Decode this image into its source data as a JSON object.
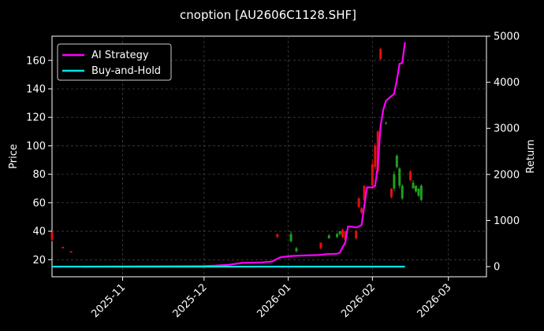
{
  "chart_data": {
    "type": "line",
    "title": "cnoption [AU2606C1128.SHF]",
    "xlabel": "",
    "ylabel": "Price",
    "y2label": "Return",
    "xlim": [
      "2025-10-06",
      "2026-03-15"
    ],
    "ylim": [
      8,
      177
    ],
    "y2lim": [
      -220,
      5000
    ],
    "x_ticks": [
      {
        "date": "2025-11-01",
        "label": "2025-11"
      },
      {
        "date": "2025-12-01",
        "label": "2025-12"
      },
      {
        "date": "2026-01-01",
        "label": "2026-01"
      },
      {
        "date": "2026-02-01",
        "label": "2026-02"
      },
      {
        "date": "2026-03-01",
        "label": "2026-03"
      }
    ],
    "y_ticks": [
      20,
      40,
      60,
      80,
      100,
      120,
      140,
      160
    ],
    "y2_ticks": [
      0,
      1000,
      2000,
      3000,
      4000,
      5000
    ],
    "grid": true,
    "legend": {
      "position": "top-left"
    },
    "colors": {
      "up": "#1fa01f",
      "down": "#e01010",
      "ai": "#ff00ff",
      "bh": "#00e5e5",
      "grid": "#555555"
    },
    "series": [
      {
        "name": "AI Strategy",
        "axis": "right",
        "x": [
          "2025-10-17",
          "2025-11-30",
          "2025-12-05",
          "2025-12-10",
          "2025-12-15",
          "2025-12-22",
          "2025-12-26",
          "2025-12-29",
          "2026-01-02",
          "2026-01-06",
          "2026-01-12",
          "2026-01-15",
          "2026-01-19",
          "2026-01-20",
          "2026-01-21",
          "2026-01-22",
          "2026-01-23",
          "2026-01-24",
          "2026-01-26",
          "2026-01-27",
          "2026-01-28",
          "2026-01-30",
          "2026-02-01",
          "2026-02-02",
          "2026-02-03",
          "2026-02-04",
          "2026-02-05",
          "2026-02-06",
          "2026-02-09",
          "2026-02-10",
          "2026-02-11",
          "2026-02-12",
          "2026-02-13"
        ],
        "values": [
          0,
          10,
          20,
          40,
          80,
          90,
          110,
          200,
          230,
          240,
          250,
          270,
          280,
          300,
          420,
          520,
          870,
          870,
          850,
          870,
          900,
          1720,
          1720,
          1750,
          2200,
          3050,
          3400,
          3600,
          3750,
          4050,
          4400,
          4420,
          4870
        ]
      },
      {
        "name": "Buy-and-Hold",
        "axis": "right",
        "x": [
          "2025-10-06",
          "2026-02-13"
        ],
        "values": [
          0,
          0
        ]
      }
    ],
    "candles": [
      {
        "date": "2025-10-06",
        "open": 40,
        "close": 34,
        "high": 40,
        "low": 33
      },
      {
        "date": "2025-10-10",
        "open": 29,
        "close": 28,
        "high": 29,
        "low": 28
      },
      {
        "date": "2025-10-13",
        "open": 26,
        "close": 25,
        "high": 26,
        "low": 25
      },
      {
        "date": "2025-12-28",
        "open": 38,
        "close": 36,
        "high": 38,
        "low": 35
      },
      {
        "date": "2026-01-02",
        "open": 33,
        "close": 38,
        "high": 40,
        "low": 32
      },
      {
        "date": "2026-01-04",
        "open": 26,
        "close": 28,
        "high": 29,
        "low": 25
      },
      {
        "date": "2026-01-13",
        "open": 32,
        "close": 28,
        "high": 32,
        "low": 27
      },
      {
        "date": "2026-01-16",
        "open": 35,
        "close": 37,
        "high": 38,
        "low": 35
      },
      {
        "date": "2026-01-19",
        "open": 36,
        "close": 38,
        "high": 39,
        "low": 35
      },
      {
        "date": "2026-01-20",
        "open": 38,
        "close": 40,
        "high": 40,
        "low": 37
      },
      {
        "date": "2026-01-21",
        "open": 41,
        "close": 36,
        "high": 42,
        "low": 35
      },
      {
        "date": "2026-01-22",
        "open": 40,
        "close": 34,
        "high": 40,
        "low": 30
      },
      {
        "date": "2026-01-26",
        "open": 40,
        "close": 35,
        "high": 41,
        "low": 34
      },
      {
        "date": "2026-01-27",
        "open": 63,
        "close": 57,
        "high": 64,
        "low": 56
      },
      {
        "date": "2026-01-28",
        "open": 56,
        "close": 53,
        "high": 57,
        "low": 52
      },
      {
        "date": "2026-01-29",
        "open": 72,
        "close": 62,
        "high": 72,
        "low": 60
      },
      {
        "date": "2026-02-01",
        "open": 87,
        "close": 72,
        "high": 90,
        "low": 70
      },
      {
        "date": "2026-02-02",
        "open": 100,
        "close": 85,
        "high": 102,
        "low": 83
      },
      {
        "date": "2026-02-03",
        "open": 110,
        "close": 82,
        "high": 111,
        "low": 80
      },
      {
        "date": "2026-02-04",
        "open": 168,
        "close": 161,
        "high": 169,
        "low": 160
      },
      {
        "date": "2026-02-06",
        "open": 116,
        "close": 116,
        "high": 117,
        "low": 115
      },
      {
        "date": "2026-02-08",
        "open": 70,
        "close": 64,
        "high": 70,
        "low": 63
      },
      {
        "date": "2026-02-09",
        "open": 70,
        "close": 80,
        "high": 82,
        "low": 68
      },
      {
        "date": "2026-02-10",
        "open": 85,
        "close": 93,
        "high": 94,
        "low": 84
      },
      {
        "date": "2026-02-11",
        "open": 72,
        "close": 84,
        "high": 85,
        "low": 70
      },
      {
        "date": "2026-02-12",
        "open": 63,
        "close": 72,
        "high": 73,
        "low": 62
      },
      {
        "date": "2026-02-15",
        "open": 82,
        "close": 76,
        "high": 83,
        "low": 75
      },
      {
        "date": "2026-02-16",
        "open": 70,
        "close": 74,
        "high": 76,
        "low": 70
      },
      {
        "date": "2026-02-17",
        "open": 68,
        "close": 72,
        "high": 72,
        "low": 67
      },
      {
        "date": "2026-02-18",
        "open": 65,
        "close": 70,
        "high": 70,
        "low": 64
      },
      {
        "date": "2026-02-19",
        "open": 62,
        "close": 72,
        "high": 73,
        "low": 61
      }
    ]
  }
}
